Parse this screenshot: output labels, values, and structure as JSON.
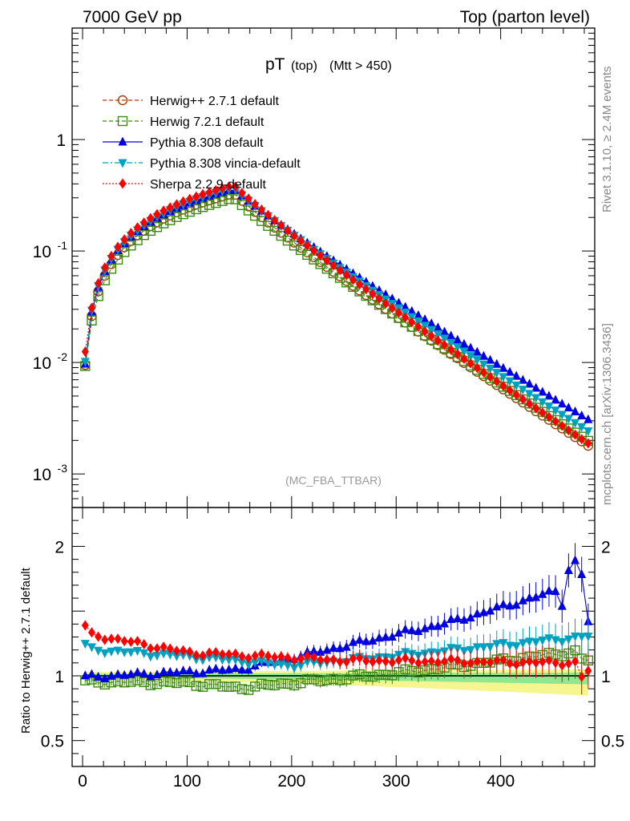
{
  "header": {
    "energy": "7000 GeV pp",
    "process": "Top (parton level)"
  },
  "side_labels": {
    "rivet": "Rivet 3.1.10, ≥ 2.4M events",
    "mcplots": "mcplots.cern.ch [arXiv:1306.3436]"
  },
  "chart_data": [
    {
      "type": "line",
      "title": "pT",
      "subtitle_parts": [
        "(top)",
        "(Mtt > 450)"
      ],
      "annotation": "(MC_FBA_TTBAR)",
      "xlabel": "",
      "ylabel": "",
      "xlim": [
        -10,
        490
      ],
      "ylim": [
        0.0005,
        10
      ],
      "yscale": "log",
      "yticks": [
        {
          "value": 1,
          "label": "1"
        },
        {
          "value": 0.1,
          "label": "10^-1"
        },
        {
          "value": 0.01,
          "label": "10^-2"
        },
        {
          "value": 0.001,
          "label": "10^-3"
        }
      ],
      "legend_position": "top-left",
      "series": [
        {
          "name": "Herwig++ 2.7.1 default",
          "color": "#a0410d",
          "marker": "open-circle",
          "dash": "5,3",
          "peak": 0.33,
          "end": 0.002,
          "x": [],
          "values": []
        },
        {
          "name": "Herwig 7.2.1 default",
          "color": "#3c8a10",
          "marker": "open-square",
          "dash": "5,3",
          "peak": 0.3,
          "end": 0.0022,
          "x": [],
          "values": []
        },
        {
          "name": "Pythia 8.308 default",
          "color": "#0000e0",
          "marker": "triangle-up",
          "dash": "",
          "peak": 0.36,
          "end": 0.0034,
          "x": [],
          "values": []
        },
        {
          "name": "Pythia 8.308 vincia-default",
          "color": "#00a0c0",
          "marker": "triangle-down",
          "dash": "7,3,2,3",
          "peak": 0.37,
          "end": 0.0027,
          "x": [],
          "values": []
        },
        {
          "name": "Sherpa 2.2.9-default",
          "color": "#ff0000",
          "marker": "diamond",
          "dash": "2,2",
          "peak": 0.39,
          "end": 0.0021,
          "x": [],
          "values": []
        }
      ]
    },
    {
      "type": "line",
      "title": "",
      "ylabel": "Ratio to Herwig++ 2.7.1 default",
      "xlabel": "",
      "xlim": [
        -10,
        490
      ],
      "ylim": [
        0.3,
        2.3
      ],
      "yticks": [
        {
          "value": 2,
          "label": "2"
        },
        {
          "value": 1,
          "label": "1"
        },
        {
          "value": 0.5,
          "label": "0.5"
        }
      ],
      "xticks": [
        0,
        100,
        200,
        300,
        400
      ],
      "reference": 1,
      "series": [
        {
          "name": "Herwig 7.2.1 default",
          "x": [],
          "values": []
        },
        {
          "name": "Pythia 8.308 default",
          "x": [],
          "values": []
        },
        {
          "name": "Pythia 8.308 vincia-default",
          "x": [],
          "values": []
        },
        {
          "name": "Sherpa 2.2.9-default",
          "x": [],
          "values": []
        }
      ]
    }
  ]
}
